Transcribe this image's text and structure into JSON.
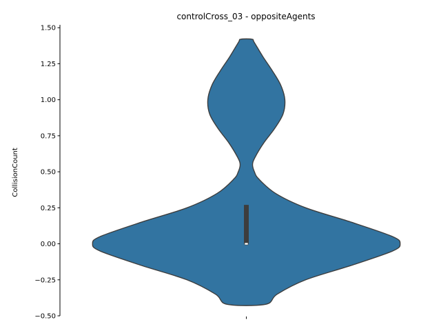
{
  "chart_data": {
    "type": "violin",
    "title": "controlCross_03 - oppositeAgents",
    "xlabel": "",
    "ylabel": "CollisionCount",
    "ylim": [
      -0.5,
      1.52
    ],
    "yticks": [
      -0.5,
      -0.25,
      0.0,
      0.25,
      0.5,
      0.75,
      1.0,
      1.25,
      1.5
    ],
    "ytick_labels": [
      "−0.50",
      "−0.25",
      "0.00",
      "0.25",
      "0.50",
      "0.75",
      "1.00",
      "1.25",
      "1.50"
    ],
    "categories": [
      ""
    ],
    "color": "#3274a1",
    "edge_color": "#3d3d3d",
    "density_profile": {
      "y": [
        -0.42,
        -0.35,
        -0.25,
        -0.15,
        -0.05,
        0.0,
        0.05,
        0.15,
        0.25,
        0.35,
        0.45,
        0.5,
        0.55,
        0.6,
        0.7,
        0.8,
        0.9,
        1.0,
        1.1,
        1.2,
        1.3,
        1.4,
        1.42
      ],
      "half_width": [
        0.062,
        0.099,
        0.191,
        0.338,
        0.471,
        0.495,
        0.471,
        0.338,
        0.191,
        0.094,
        0.04,
        0.026,
        0.02,
        0.028,
        0.056,
        0.091,
        0.118,
        0.124,
        0.111,
        0.084,
        0.053,
        0.025,
        0.018
      ]
    },
    "box": {
      "q1": 0.0,
      "q3": 0.27,
      "median": 0.0,
      "whisker_low": 0.0,
      "whisker_high": 0.27
    }
  }
}
